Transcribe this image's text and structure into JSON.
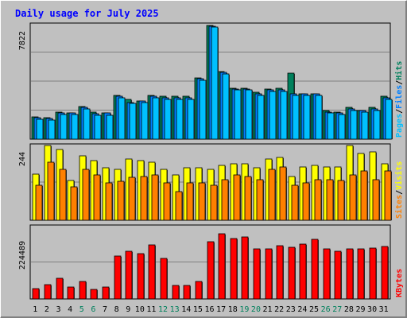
{
  "title": "Daily usage for July 2025",
  "colors": {
    "background": "#C0C0C0",
    "title": "#0000FF",
    "hits": "#00805C",
    "files": "#0080FF",
    "pages": "#00C0FF",
    "visits": "#FFFF00",
    "sites": "#FF8000",
    "kbytes": "#FF0000",
    "weekend_day": "#00805C",
    "weekday": "#000000",
    "legend_separator": "#000000"
  },
  "chart_data": [
    {
      "type": "bar",
      "panel": "top",
      "ylabel": "7822",
      "ymax": 7822,
      "grid": true,
      "legend": [
        "Pages",
        "Files",
        "Hits"
      ],
      "categories": [
        "1",
        "2",
        "3",
        "4",
        "5",
        "6",
        "7",
        "8",
        "9",
        "10",
        "11",
        "12",
        "13",
        "14",
        "15",
        "16",
        "17",
        "18",
        "19",
        "20",
        "21",
        "22",
        "23",
        "24",
        "25",
        "26",
        "27",
        "28",
        "29",
        "30",
        "31"
      ],
      "series": [
        {
          "name": "Hits",
          "values": [
            1555,
            1465,
            1871,
            1826,
            2262,
            1871,
            1826,
            3016,
            2712,
            2622,
            3016,
            2937,
            2937,
            2937,
            4212,
            7822,
            4655,
            3520,
            3520,
            3236,
            3440,
            3520,
            4516,
            3112,
            3112,
            1966,
            1871,
            2172,
            1966,
            2172,
            2937
          ]
        },
        {
          "name": "Files",
          "values": [
            1465,
            1420,
            1781,
            1781,
            2172,
            1735,
            1781,
            2937,
            2533,
            2622,
            2937,
            2847,
            2847,
            2847,
            4132,
            7753,
            4579,
            3440,
            3440,
            3112,
            3380,
            3380,
            3112,
            3112,
            3112,
            1871,
            1781,
            2083,
            1966,
            2083,
            2847
          ]
        },
        {
          "name": "Pages",
          "values": [
            1380,
            1330,
            1690,
            1690,
            2083,
            1640,
            1640,
            2847,
            2443,
            2533,
            2847,
            2757,
            2757,
            2757,
            4052,
            7693,
            4500,
            3380,
            3380,
            3016,
            3300,
            3300,
            3016,
            3016,
            3016,
            1781,
            1690,
            1966,
            1871,
            1966,
            2757
          ]
        }
      ]
    },
    {
      "type": "bar",
      "panel": "middle",
      "ylabel": "244",
      "ymax": 244,
      "grid": true,
      "legend": [
        "Sites",
        "Visits"
      ],
      "categories": [
        "1",
        "2",
        "3",
        "4",
        "5",
        "6",
        "7",
        "8",
        "9",
        "10",
        "11",
        "12",
        "13",
        "14",
        "15",
        "16",
        "17",
        "18",
        "19",
        "20",
        "21",
        "22",
        "23",
        "24",
        "25",
        "26",
        "27",
        "28",
        "29",
        "30",
        "31"
      ],
      "series": [
        {
          "name": "Visits",
          "values": [
            151,
            244,
            232,
            130,
            209,
            195,
            171,
            166,
            199,
            195,
            189,
            166,
            147,
            171,
            171,
            166,
            180,
            185,
            185,
            171,
            199,
            204,
            142,
            175,
            180,
            175,
            175,
            244,
            217,
            223,
            185
          ]
        },
        {
          "name": "Sites",
          "values": [
            113,
            189,
            166,
            108,
            166,
            147,
            122,
            127,
            140,
            142,
            147,
            122,
            94,
            122,
            122,
            113,
            132,
            147,
            142,
            132,
            166,
            175,
            113,
            122,
            132,
            132,
            130,
            147,
            160,
            132,
            160
          ]
        }
      ]
    },
    {
      "type": "bar",
      "panel": "bottom",
      "ylabel": "224489",
      "ymax": 224489,
      "grid": true,
      "legend": [
        "KBytes"
      ],
      "categories": [
        "1",
        "2",
        "3",
        "4",
        "5",
        "6",
        "7",
        "8",
        "9",
        "10",
        "11",
        "12",
        "13",
        "14",
        "15",
        "16",
        "17",
        "18",
        "19",
        "20",
        "21",
        "22",
        "23",
        "24",
        "25",
        "26",
        "27",
        "28",
        "29",
        "30",
        "31"
      ],
      "series": [
        {
          "name": "KBytes",
          "values": [
            33000,
            44000,
            63000,
            37000,
            55000,
            30000,
            38000,
            134000,
            147000,
            141000,
            168000,
            125000,
            43000,
            43000,
            53000,
            178000,
            202000,
            188000,
            192000,
            154000,
            156000,
            166000,
            159000,
            170000,
            184000,
            156000,
            148000,
            156000,
            156000,
            157000,
            162000
          ]
        }
      ]
    }
  ],
  "weekend_days": [
    "5",
    "6",
    "12",
    "13",
    "19",
    "20",
    "26",
    "27"
  ]
}
